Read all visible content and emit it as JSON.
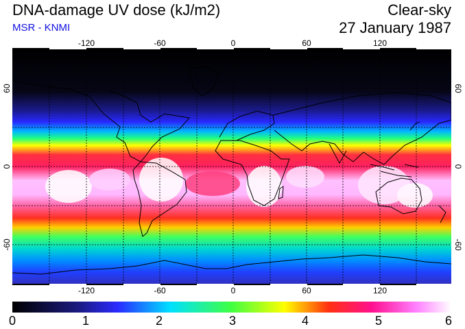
{
  "header": {
    "title": "DNA-damage UV dose (kJ/m2)",
    "source": "MSR - KNMI",
    "condition": "Clear-sky",
    "date": "27 January 1987"
  },
  "map": {
    "lon_ticks": [
      "-120",
      "-60",
      "0",
      "60",
      "120"
    ],
    "lat_ticks": [
      "60",
      "0",
      "-60"
    ]
  },
  "colorbar": {
    "labels": [
      "0",
      "1",
      "2",
      "3",
      "4",
      "5",
      "6"
    ],
    "colors": [
      "#000000",
      "#2a2aff",
      "#00e0ff",
      "#40ff40",
      "#ffff00",
      "#ff2040",
      "#ffffff"
    ]
  }
}
